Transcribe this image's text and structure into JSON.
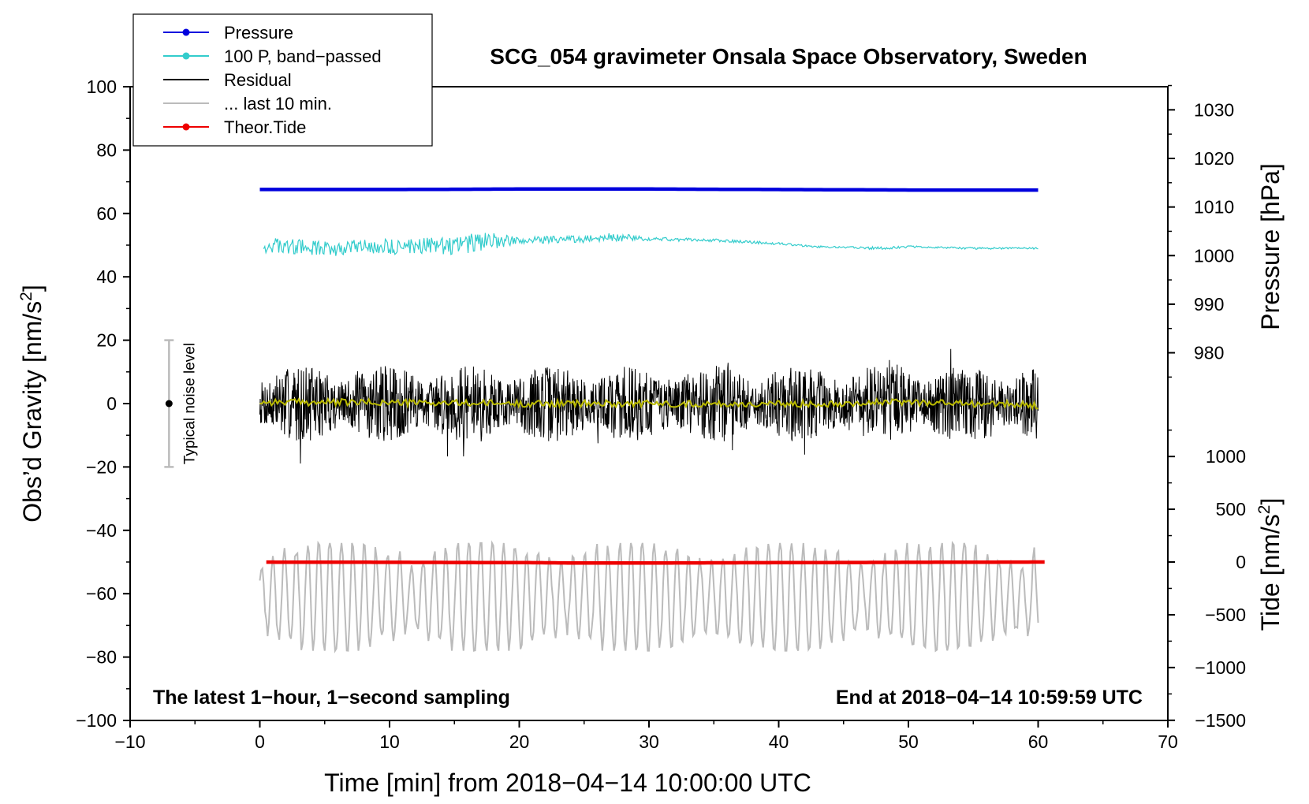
{
  "chart_data": {
    "type": "line",
    "title": "SCG_054 gravimeter Onsala Space Observatory, Sweden",
    "xlabel": "Time [min] from 2018−04−14 10:00:00 UTC",
    "ylabel_left": "Obs’d Gravity [nm/s",
    "ylabel_left_sup": "2",
    "ylabel_left_end": "]",
    "ylabel_right_pressure": "Pressure [hPa]",
    "ylabel_right_tide": "Tide [nm/s",
    "ylabel_right_tide_sup": "2",
    "ylabel_right_tide_end": "]",
    "xlim": [
      -10,
      70
    ],
    "ylim": [
      -100,
      100
    ],
    "xticks": [
      -10,
      0,
      10,
      20,
      30,
      40,
      50,
      60,
      70
    ],
    "xtick_labels": [
      "−10",
      "0",
      "10",
      "20",
      "30",
      "40",
      "50",
      "60",
      "70"
    ],
    "yticks": [
      -100,
      -80,
      -60,
      -40,
      -20,
      0,
      20,
      40,
      60,
      80,
      100
    ],
    "ytick_labels": [
      "−100",
      "−80",
      "−60",
      "−40",
      "−20",
      "0",
      "20",
      "40",
      "60",
      "80",
      "100"
    ],
    "pressure_axis": {
      "ticks": [
        980,
        990,
        1000,
        1010,
        1020,
        1030
      ],
      "tick_labels": [
        "980",
        "990",
        "1000",
        "1010",
        "1020",
        "1030"
      ],
      "map": {
        "value_a": 1000,
        "gravity_a": 46.7,
        "value_b": 1030,
        "gravity_b": 92.7
      }
    },
    "tide_axis": {
      "ticks": [
        -1500,
        -1000,
        -500,
        0,
        500,
        1000
      ],
      "tick_labels": [
        "−1500",
        "−1000",
        "−500",
        "0",
        "500",
        "1000"
      ],
      "map": {
        "value_a": 0,
        "gravity_a": -50.0,
        "value_b": 1000,
        "gravity_b": -16.7
      }
    },
    "series": [
      {
        "name": "Pressure",
        "color": "#0000dd",
        "axis": "pressure",
        "x": [
          0,
          10,
          20,
          30,
          40,
          50,
          60
        ],
        "values": [
          1013.6,
          1013.6,
          1013.7,
          1013.7,
          1013.6,
          1013.5,
          1013.5
        ]
      },
      {
        "name": "100 P, band−passed",
        "color": "#33cccc",
        "axis": "gravity",
        "x": [
          0,
          5,
          10,
          15,
          17,
          20,
          25,
          27,
          30,
          35,
          40,
          43,
          45,
          48,
          50,
          55,
          60
        ],
        "values": [
          50,
          49,
          49.5,
          50,
          51,
          51.5,
          52,
          52.5,
          52,
          51.5,
          50.5,
          49.5,
          49.3,
          49,
          49.5,
          49,
          49
        ],
        "noise_amplitude": [
          2.5,
          2.5,
          2.5,
          3,
          3.5,
          1,
          1.2,
          1.5,
          0.6,
          0.5,
          0.4,
          0.3,
          0.3,
          0.5,
          0.3,
          0.3,
          0.3
        ]
      },
      {
        "name": "Residual",
        "color": "#000000",
        "axis": "gravity",
        "x": [
          0,
          60
        ],
        "values": [
          0,
          0
        ],
        "noise_amplitude": [
          12,
          12
        ],
        "min": -21,
        "max": 24
      },
      {
        "name": "Residual smoothed",
        "color": "#bbbb00",
        "axis": "gravity",
        "x": [
          0,
          10,
          20,
          30,
          40,
          50,
          60
        ],
        "values": [
          0.5,
          0.3,
          0,
          0,
          -0.2,
          0.5,
          -0.5
        ]
      },
      {
        "name": "... last 10 min.",
        "color": "#bbbbbb",
        "axis": "gravity",
        "x": [
          0,
          60
        ],
        "values": [
          -61,
          -61
        ],
        "min": -78,
        "max": -44,
        "note": "last 10 minutes of residual, expanded over the 60-min axis and offset"
      },
      {
        "name": "Theor.Tide",
        "color": "#ee0000",
        "axis": "tide",
        "x": [
          0,
          10,
          20,
          25,
          30,
          40,
          50,
          60
        ],
        "values": [
          -1,
          -3,
          -6,
          -10,
          -9,
          -6,
          -3,
          0
        ]
      }
    ],
    "legend": [
      {
        "label": "Pressure",
        "color": "#0000dd",
        "marker": true
      },
      {
        "label": "100 P, band−passed",
        "color": "#33cccc",
        "marker": true
      },
      {
        "label": "Residual",
        "color": "#000000",
        "marker": false
      },
      {
        "label": "... last 10 min.",
        "color": "#bbbbbb",
        "marker": false
      },
      {
        "label": "Theor.Tide",
        "color": "#ee0000",
        "marker": true
      }
    ],
    "legend_position": "top-left",
    "noise_bar": {
      "label": "Typical noise level",
      "x": -7,
      "center": 0,
      "low": -20,
      "high": 20
    },
    "annotation_left": "The latest 1−hour, 1−second sampling",
    "annotation_right": "End at 2018−04−14 10:59:59 UTC"
  }
}
